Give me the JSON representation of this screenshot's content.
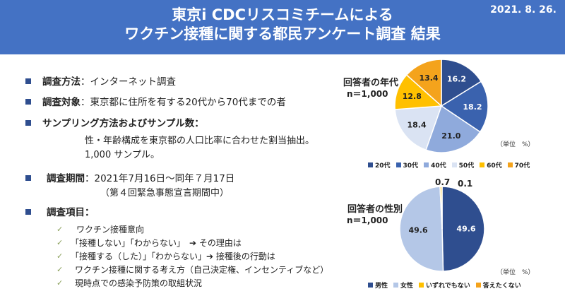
{
  "header": {
    "title_line1": "東京i CDCリスコミチームによる",
    "title_line2": "ワクチン接種に関する都民アンケート調査 結果",
    "date": "2021. 8. 26."
  },
  "survey": {
    "method_label": "調査方法",
    "method_value": "：インターネット調査",
    "target_label": "調査対象",
    "target_value": "：東京都に住所を有する20代から70代までの者",
    "sampling_label": "サンプリング方法およびサンプル数：",
    "sampling_line1": "性・年齢構成を東京都の人口比率に合わせた割当抽出。",
    "sampling_line2": "1,000 サンプル。",
    "period_label": "調査期間",
    "period_value": "：2021年7月16日～同年７月17日",
    "period_note": "（第４回緊急事態宣言期間中）",
    "items_label": "調査項目：",
    "items": [
      "ワクチン接種意向",
      "「接種しない」「わからない」　➔ その理由は",
      "「接種する（した）」「わからない」➔ 接種後の行動は",
      "ワクチン接種に関する考え方（自己決定権、インセンティブなど）",
      "現時点での感染予防策の取組状況"
    ]
  },
  "chart_data": [
    {
      "type": "pie",
      "title": "回答者の年代",
      "n_label": "n＝1,000",
      "unit": "（単位　%）",
      "categories": [
        "20代",
        "30代",
        "40代",
        "50代",
        "60代",
        "70代"
      ],
      "values": [
        16.2,
        18.2,
        21.0,
        18.4,
        12.8,
        13.4
      ],
      "colors": [
        "#2f4e8f",
        "#3a62ae",
        "#8faadc",
        "#dae3f3",
        "#ffc000",
        "#f4a31c"
      ],
      "label_colors": [
        "#ffffff",
        "#ffffff",
        "#222222",
        "#222222",
        "#222222",
        "#222222"
      ],
      "legend_placement": "bottom"
    },
    {
      "type": "pie",
      "title": "回答者の性別",
      "n_label": "n＝1,000",
      "unit": "（単位　%）",
      "categories": [
        "男性",
        "女性",
        "いずれでもない",
        "答えたくない"
      ],
      "values": [
        49.6,
        49.6,
        0.7,
        0.1
      ],
      "colors": [
        "#2f4e8f",
        "#b4c7e7",
        "#ffc000",
        "#f4a31c"
      ],
      "label_colors": [
        "#ffffff",
        "#222222",
        "#222222",
        "#222222"
      ],
      "legend_placement": "bottom"
    }
  ]
}
